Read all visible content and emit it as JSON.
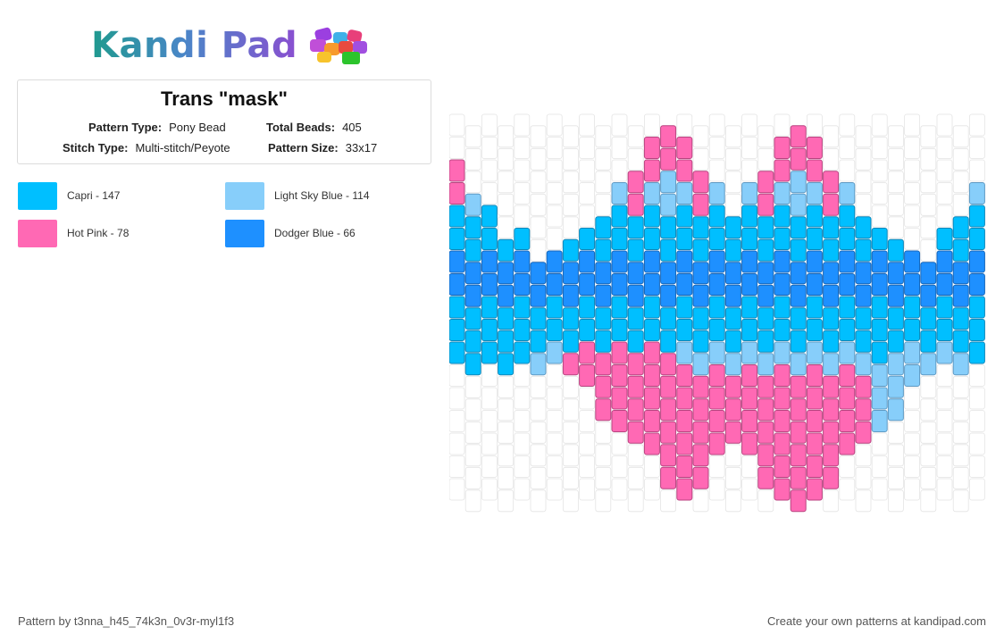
{
  "brand": {
    "name": "Kandi Pad"
  },
  "pattern": {
    "title": "Trans \"mask\"",
    "type_label": "Pattern Type:",
    "type_value": "Pony Bead",
    "beads_label": "Total Beads:",
    "beads_value": "405",
    "stitch_label": "Stitch Type:",
    "stitch_value": "Multi-stitch/Peyote",
    "size_label": "Pattern Size:",
    "size_value": "33x17"
  },
  "legend": [
    {
      "label": "Capri - 147",
      "color": "#00BFFF"
    },
    {
      "label": "Light Sky Blue - 114",
      "color": "#87CEFA"
    },
    {
      "label": "Hot Pink - 78",
      "color": "#FF69B4"
    },
    {
      "label": "Dodger Blue - 66",
      "color": "#1E90FF"
    }
  ],
  "footer": {
    "credit": "Pattern by t3nna_h45_74k3n_0v3r-myl1f3",
    "cta": "Create your own patterns at kandipad.com"
  },
  "colors": {
    "capri": "#00BFFF",
    "light_sky_blue": "#87CEFA",
    "hot_pink": "#FF69B4",
    "dodger_blue": "#1E90FF",
    "empty_bead": "#FFFFFF",
    "empty_bead_border": "#E4E4E4"
  }
}
